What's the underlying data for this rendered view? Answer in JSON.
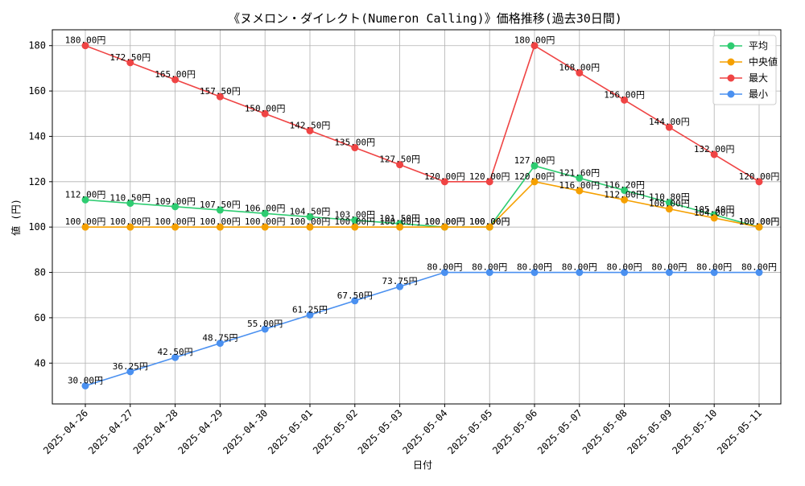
{
  "chart_data": {
    "type": "line",
    "title": "《ヌメロン・ダイレクト(Numeron Calling)》価格推移(過去30日間)",
    "xlabel": "日付",
    "ylabel": "値 (円)",
    "x": [
      "2025-04-26",
      "2025-04-27",
      "2025-04-28",
      "2025-04-29",
      "2025-04-30",
      "2025-05-01",
      "2025-05-02",
      "2025-05-03",
      "2025-05-04",
      "2025-05-05",
      "2025-05-06",
      "2025-05-07",
      "2025-05-08",
      "2025-05-09",
      "2025-05-10",
      "2025-05-11"
    ],
    "ylim": [
      22,
      187
    ],
    "yticks": [
      40,
      60,
      80,
      100,
      120,
      140,
      160,
      180
    ],
    "grid": true,
    "legend_position": "top-right",
    "series": [
      {
        "name": "平均",
        "color": "#2ecc71",
        "values": [
          112,
          110.5,
          109,
          107.5,
          106,
          104.5,
          103,
          101.5,
          100,
          100,
          127,
          121.6,
          116.2,
          110.8,
          105.4,
          100
        ],
        "labels": [
          "112.00円",
          "110.50円",
          "109.00円",
          "107.50円",
          "106.00円",
          "104.50円",
          "103.00円",
          "101.50円",
          "100.00円",
          "100.00円",
          "127.00円",
          "121.60円",
          "116.20円",
          "110.80円",
          "105.40円",
          "100.00円"
        ]
      },
      {
        "name": "中央値",
        "color": "#f5a000",
        "values": [
          100,
          100,
          100,
          100,
          100,
          100,
          100,
          100,
          100,
          100,
          120,
          116,
          112,
          108,
          104,
          100
        ],
        "labels": [
          "100.00円",
          "100.00円",
          "100.00円",
          "100.00円",
          "100.00円",
          "100.00円",
          "100.00円",
          "100.00円",
          "100.00円",
          "100.00円",
          "120.00円",
          "116.00円",
          "112.00円",
          "108.00円",
          "104.00円",
          "100.00円"
        ]
      },
      {
        "name": "最大",
        "color": "#ef4444",
        "values": [
          180,
          172.5,
          165,
          157.5,
          150,
          142.5,
          135,
          127.5,
          120,
          120,
          180,
          168,
          156,
          144,
          132,
          120
        ],
        "labels": [
          "180.00円",
          "172.50円",
          "165.00円",
          "157.50円",
          "150.00円",
          "142.50円",
          "135.00円",
          "127.50円",
          "120.00円",
          "120.00円",
          "180.00円",
          "168.00円",
          "156.00円",
          "144.00円",
          "132.00円",
          "120.00円"
        ]
      },
      {
        "name": "最小",
        "color": "#4a90f0",
        "values": [
          30,
          36.25,
          42.5,
          48.75,
          55,
          61.25,
          67.5,
          73.75,
          80,
          80,
          80,
          80,
          80,
          80,
          80,
          80
        ],
        "labels": [
          "30.00円",
          "36.25円",
          "42.50円",
          "48.75円",
          "55.00円",
          "61.25円",
          "67.50円",
          "73.75円",
          "80.00円",
          "80.00円",
          "80.00円",
          "80.00円",
          "80.00円",
          "80.00円",
          "80.00円",
          "80.00円"
        ]
      }
    ]
  }
}
